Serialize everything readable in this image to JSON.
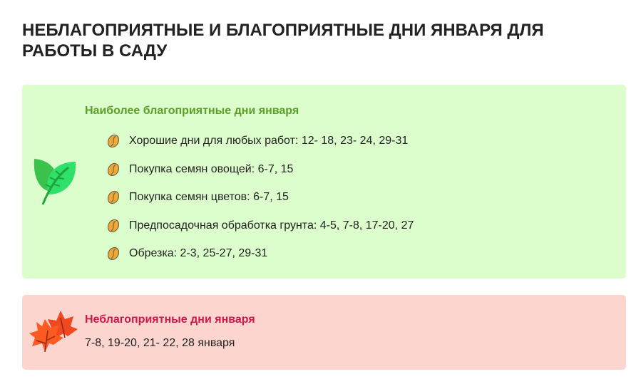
{
  "title": "НЕБЛАГОПРИЯТНЫЕ И БЛАГОПРИЯТНЫЕ ДНИ ЯНВАРЯ ДЛЯ РАБОТЫ В САДУ",
  "good": {
    "title": "Наиболее благоприятные дни января",
    "icon": "leaf-icon",
    "bullet_icon": "coffee-bean-icon",
    "color": "#5b9e28",
    "items": [
      "Хорошие дни для любых работ: 12- 18,  23- 24, 29-31",
      "Покупка семян овощей: 6-7, 15",
      "Покупка семян цветов: 6-7, 15",
      "Предпосадочная обработка грунта: 4-5, 7-8, 17-20, 27",
      "Обрезка: 2-3, 25-27, 29-31"
    ]
  },
  "bad": {
    "title": "Неблагоприятные дни января",
    "text": "7-8, 19-20, 21- 22, 28 января",
    "icon": "maple-leaves-icon",
    "color": "#d0164a"
  }
}
